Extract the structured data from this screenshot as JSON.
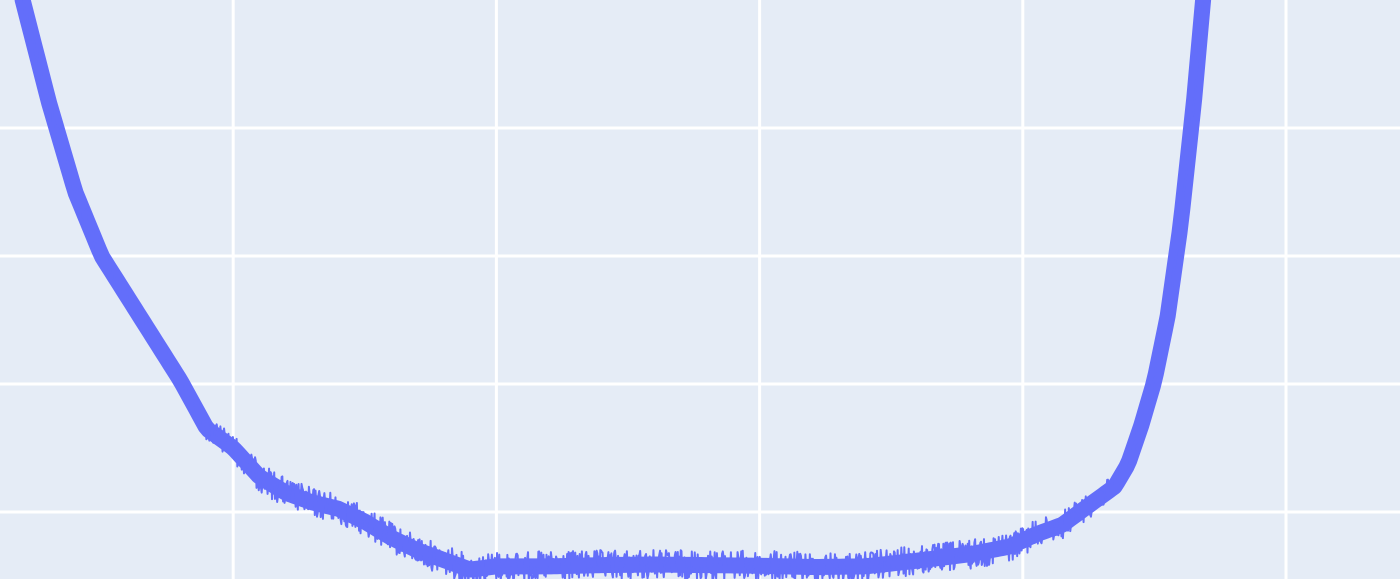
{
  "chart_data": {
    "type": "line",
    "title": "",
    "xlabel": "",
    "ylabel": "",
    "grid": true,
    "xlim": [
      0,
      1000
    ],
    "ylim": [
      0,
      1000
    ],
    "x_gridlines": [
      200,
      400,
      600,
      800,
      1000
    ],
    "y_gridlines": [
      200,
      400,
      600,
      800
    ],
    "series": [
      {
        "style": "noisy band",
        "color": "#636efa",
        "points": [
          [
            40,
            1000
          ],
          [
            60,
            840
          ],
          [
            80,
            700
          ],
          [
            100,
            600
          ],
          [
            120,
            535
          ],
          [
            140,
            470
          ],
          [
            160,
            405
          ],
          [
            180,
            330
          ],
          [
            200,
            300
          ],
          [
            220,
            255
          ],
          [
            240,
            230
          ],
          [
            260,
            215
          ],
          [
            280,
            205
          ],
          [
            300,
            185
          ],
          [
            320,
            160
          ],
          [
            340,
            140
          ],
          [
            360,
            125
          ],
          [
            380,
            110
          ],
          [
            400,
            115
          ],
          [
            440,
            115
          ],
          [
            480,
            117
          ],
          [
            520,
            118
          ],
          [
            560,
            117
          ],
          [
            600,
            116
          ],
          [
            640,
            114
          ],
          [
            680,
            115
          ],
          [
            720,
            124
          ],
          [
            760,
            134
          ],
          [
            790,
            146
          ],
          [
            810,
            165
          ],
          [
            830,
            180
          ],
          [
            850,
            210
          ],
          [
            870,
            240
          ],
          [
            880,
            275
          ],
          [
            890,
            335
          ],
          [
            900,
            405
          ],
          [
            910,
            505
          ],
          [
            920,
            650
          ],
          [
            930,
            840
          ],
          [
            937,
            1000
          ]
        ],
        "band_halfwidth": [
          5,
          7,
          9,
          10,
          11,
          12,
          13,
          14,
          14,
          15,
          15,
          15,
          15,
          15,
          15,
          15,
          15,
          15,
          15,
          15,
          15,
          15,
          15,
          15,
          15,
          15,
          15,
          15,
          15,
          14,
          14,
          13,
          12,
          11,
          9,
          8,
          7,
          6,
          5,
          5
        ]
      }
    ]
  }
}
